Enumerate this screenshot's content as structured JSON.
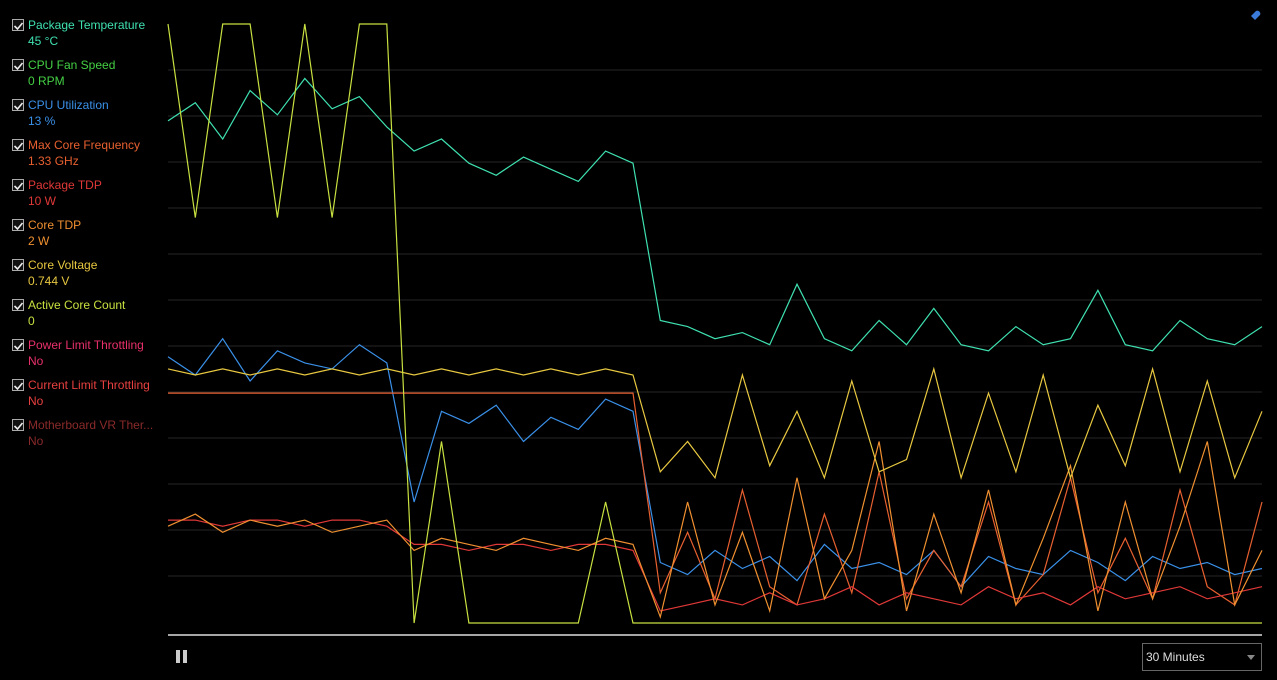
{
  "chart_data": {
    "type": "line",
    "ylim": [
      0,
      100
    ],
    "series": [
      {
        "name": "Package Temperature",
        "reading": "45 °C",
        "color": "#3fe0b0",
        "values": [
          83,
          86,
          80,
          88,
          84,
          90,
          85,
          87,
          82,
          78,
          80,
          76,
          74,
          77,
          75,
          73,
          78,
          76,
          50,
          49,
          47,
          48,
          46,
          56,
          47,
          45,
          50,
          46,
          52,
          46,
          45,
          49,
          46,
          47,
          55,
          46,
          45,
          50,
          47,
          46,
          49
        ]
      },
      {
        "name": "CPU Fan Speed",
        "reading": "0 RPM",
        "color": "#44d044"
      },
      {
        "name": "CPU Utilization",
        "reading": "13 %",
        "color": "#3a90e8",
        "values": [
          44,
          41,
          47,
          40,
          45,
          43,
          42,
          46,
          43,
          20,
          35,
          33,
          36,
          30,
          34,
          32,
          37,
          35,
          10,
          8,
          12,
          9,
          11,
          7,
          13,
          9,
          10,
          8,
          12,
          6,
          11,
          9,
          8,
          12,
          10,
          7,
          11,
          9,
          10,
          8,
          9
        ]
      },
      {
        "name": "Max Core Frequency",
        "reading": "1.33 GHz",
        "color": "#e86030",
        "values": [
          38,
          38,
          38,
          38,
          38,
          38,
          38,
          38,
          38,
          38,
          38,
          38,
          38,
          38,
          38,
          38,
          38,
          38,
          5,
          15,
          4,
          22,
          6,
          3,
          18,
          5,
          25,
          4,
          12,
          6,
          20,
          3,
          8,
          24,
          5,
          14,
          4,
          22,
          6,
          3,
          20
        ]
      },
      {
        "name": "Package TDP",
        "reading": "10 W",
        "color": "#e03838",
        "values": [
          17,
          17,
          16,
          17,
          17,
          16,
          17,
          17,
          16,
          13,
          13,
          12,
          13,
          13,
          12,
          13,
          13,
          12,
          2,
          3,
          4,
          3,
          5,
          3,
          4,
          6,
          3,
          5,
          4,
          3,
          6,
          4,
          5,
          3,
          6,
          4,
          5,
          6,
          4,
          5,
          6
        ]
      },
      {
        "name": "Core TDP",
        "reading": "2 W",
        "color": "#f09030",
        "values": [
          16,
          18,
          15,
          17,
          16,
          17,
          15,
          16,
          17,
          12,
          14,
          13,
          12,
          14,
          13,
          12,
          14,
          13,
          1,
          20,
          3,
          15,
          2,
          24,
          4,
          12,
          30,
          2,
          18,
          5,
          22,
          3,
          14,
          26,
          2,
          20,
          4,
          16,
          30,
          3,
          12
        ]
      },
      {
        "name": "Core Voltage",
        "reading": "0.744 V",
        "color": "#e8c840",
        "values": [
          42,
          41,
          42,
          41,
          42,
          41,
          42,
          41,
          42,
          41,
          42,
          41,
          42,
          41,
          42,
          41,
          42,
          41,
          25,
          30,
          24,
          41,
          26,
          35,
          24,
          40,
          25,
          27,
          42,
          24,
          38,
          25,
          41,
          24,
          36,
          26,
          42,
          25,
          40,
          24,
          35
        ]
      },
      {
        "name": "Active Core Count",
        "reading": "0",
        "color": "#c8e040",
        "values": [
          99,
          67,
          99,
          99,
          67,
          99,
          67,
          99,
          99,
          0,
          30,
          0,
          0,
          0,
          0,
          0,
          20,
          0,
          0,
          0,
          0,
          0,
          0,
          0,
          0,
          0,
          0,
          0,
          0,
          0,
          0,
          0,
          0,
          0,
          0,
          0,
          0,
          0,
          0,
          0,
          0
        ]
      },
      {
        "name": "Power Limit Throttling",
        "reading": "No",
        "color": "#e8306a"
      },
      {
        "name": "Current Limit Throttling",
        "reading": "No",
        "color": "#e84040"
      },
      {
        "name": "Motherboard VR Ther...",
        "reading": "No",
        "color": "#8a2a2a"
      }
    ]
  },
  "controls": {
    "timespan": "30 Minutes"
  }
}
